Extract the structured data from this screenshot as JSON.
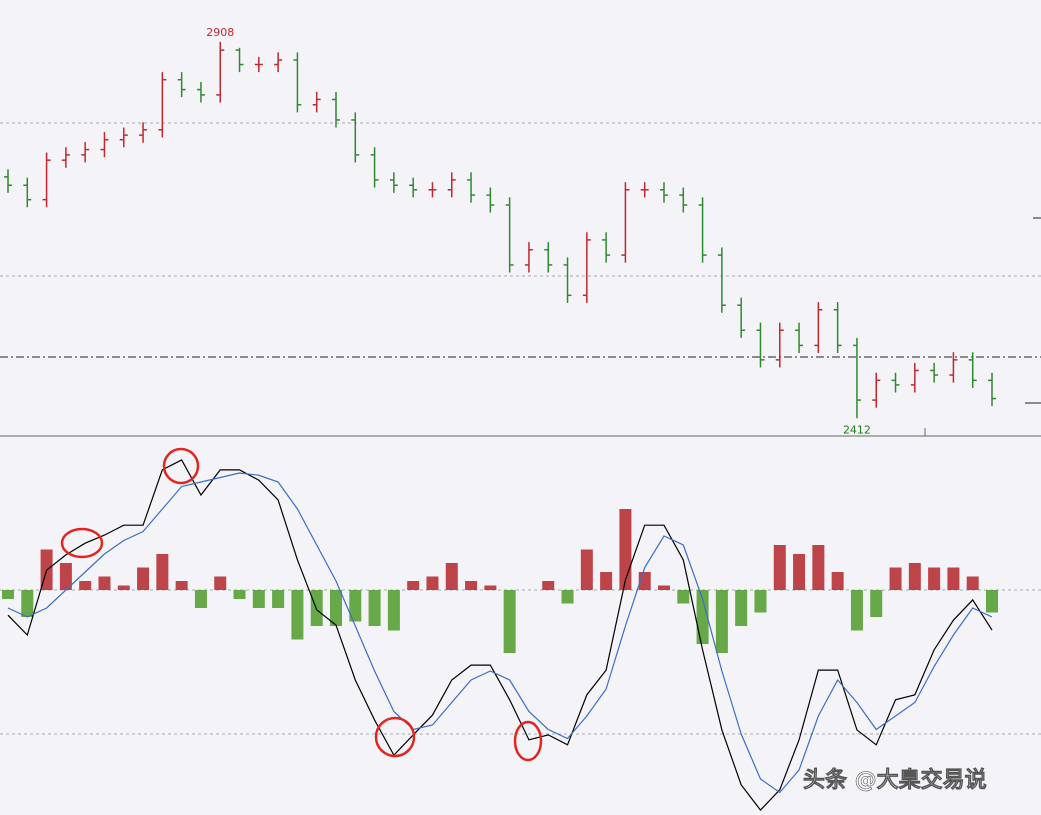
{
  "chart_data": [
    {
      "type": "ohlc",
      "open": [
        2730,
        2719,
        2700,
        2752,
        2759,
        2766,
        2779,
        2785,
        2792,
        2858,
        2845,
        2838,
        2897,
        2878,
        2878,
        2884,
        2825,
        2832,
        2805,
        2759,
        2726,
        2719,
        2713,
        2713,
        2726,
        2706,
        2693,
        2614,
        2634,
        2614,
        2574,
        2647,
        2627,
        2713,
        2713,
        2706,
        2693,
        2627,
        2561,
        2528,
        2489,
        2528,
        2508,
        2555,
        2508,
        2436,
        2462,
        2456,
        2475,
        2469,
        2489,
        2462
      ],
      "high": [
        2740,
        2729,
        2762,
        2769,
        2776,
        2789,
        2795,
        2802,
        2868,
        2868,
        2855,
        2908,
        2900,
        2888,
        2894,
        2894,
        2842,
        2842,
        2815,
        2769,
        2736,
        2729,
        2723,
        2736,
        2736,
        2716,
        2703,
        2644,
        2644,
        2624,
        2657,
        2657,
        2723,
        2723,
        2723,
        2716,
        2703,
        2637,
        2571,
        2538,
        2538,
        2538,
        2565,
        2565,
        2518,
        2472,
        2472,
        2485,
        2485,
        2499,
        2499,
        2472
      ],
      "low": [
        2709,
        2690,
        2690,
        2742,
        2749,
        2756,
        2769,
        2775,
        2782,
        2835,
        2828,
        2828,
        2868,
        2868,
        2868,
        2815,
        2815,
        2795,
        2749,
        2716,
        2709,
        2703,
        2703,
        2703,
        2696,
        2683,
        2604,
        2604,
        2604,
        2564,
        2564,
        2617,
        2617,
        2703,
        2696,
        2683,
        2617,
        2551,
        2518,
        2479,
        2479,
        2498,
        2498,
        2498,
        2412,
        2426,
        2446,
        2446,
        2459,
        2459,
        2452,
        2428
      ],
      "close": [
        2719,
        2700,
        2752,
        2759,
        2766,
        2779,
        2785,
        2792,
        2858,
        2845,
        2838,
        2897,
        2878,
        2878,
        2884,
        2825,
        2832,
        2805,
        2759,
        2726,
        2719,
        2713,
        2713,
        2726,
        2706,
        2693,
        2614,
        2634,
        2614,
        2574,
        2647,
        2627,
        2713,
        2713,
        2706,
        2693,
        2627,
        2561,
        2528,
        2489,
        2528,
        2508,
        2555,
        2508,
        2436,
        2462,
        2456,
        2475,
        2469,
        2489,
        2462,
        2438
      ],
      "up_color": "#c0282d",
      "down_color": "#2f8a2f",
      "ylim": [
        2390,
        2963
      ],
      "high_label_index": 11,
      "low_label_index": 44
    },
    {
      "type": "macd",
      "series": [
        {
          "color": "#000000",
          "values": [
            -5.6,
            -10,
            4.4,
            7.8,
            10.4,
            12.2,
            14.4,
            14.4,
            26.7,
            28.9,
            21.1,
            26.7,
            26.7,
            24.4,
            20,
            6.7,
            -4.4,
            -7.8,
            -20,
            -28.9,
            -36.7,
            -32.2,
            -27.8,
            -20,
            -16.7,
            -16.7,
            -24.4,
            -33.3,
            -32.2,
            -34.4,
            -23.3,
            -17.8,
            2.2,
            14.4,
            14.4,
            6.7,
            -13.3,
            -31.1,
            -43.3,
            -48.9,
            -44.4,
            -33.3,
            -17.8,
            -17.8,
            -31.1,
            -34.4,
            -24.4,
            -23.3,
            -13.3,
            -6.7,
            -2.2,
            -8.9
          ]
        },
        {
          "color": "#3a6fc4",
          "values": [
            -4,
            -6,
            -4,
            0,
            4,
            8,
            11,
            13,
            18,
            23,
            24,
            25,
            26,
            25.5,
            24,
            18,
            10,
            2,
            -8,
            -18,
            -27,
            -31,
            -30,
            -25,
            -20,
            -18,
            -20,
            -27,
            -31,
            -33,
            -28,
            -22,
            -8,
            5,
            12,
            10,
            -2,
            -18,
            -32,
            -42,
            -45,
            -40,
            -28,
            -20,
            -25,
            -31,
            -28,
            -25,
            -17,
            -10,
            -4,
            -6
          ]
        }
      ],
      "histogram": [
        -2,
        -6,
        9,
        6,
        2,
        3,
        1,
        5,
        8,
        2,
        -4,
        3,
        -2,
        -4,
        -4,
        -11,
        -8,
        -8,
        -7,
        -8,
        -9,
        2,
        3,
        6,
        2,
        1,
        -14,
        0,
        2,
        -3,
        9,
        4,
        18,
        4,
        1,
        -3,
        -12,
        -14,
        -8,
        -5,
        10,
        8,
        10,
        4,
        -9,
        -6,
        5,
        6,
        5,
        5,
        3,
        -5
      ],
      "up_color": "#b3262b",
      "down_color": "#4e9a2a",
      "ylim": [
        -50,
        34
      ]
    }
  ],
  "watermark": "头条 @大臬交易说"
}
